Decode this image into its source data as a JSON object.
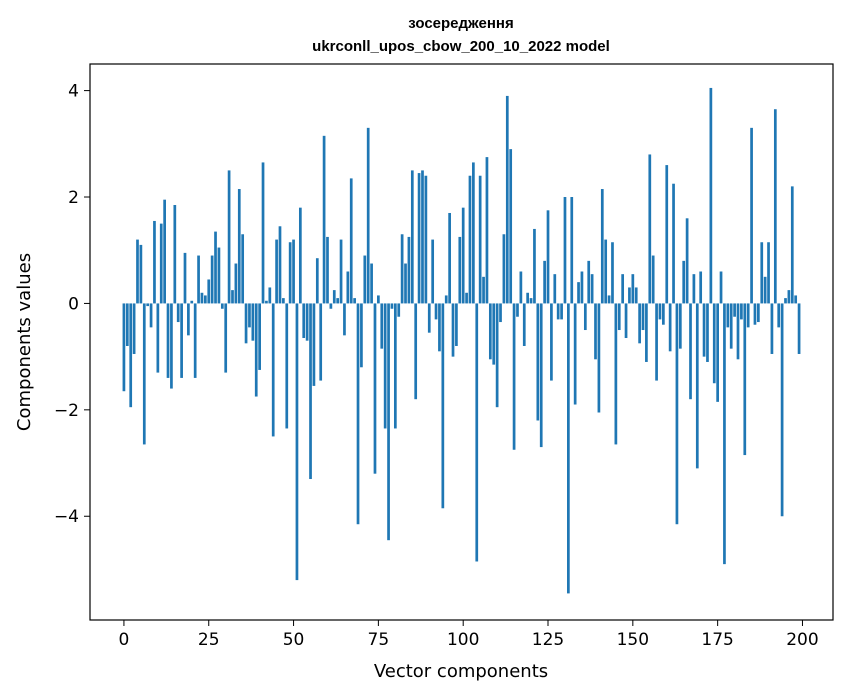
{
  "chart_data": {
    "type": "bar",
    "title": "зосередження",
    "subtitle": "ukrconll_upos_cbow_200_10_2022 model",
    "xlabel": "Vector components",
    "ylabel": "Components values",
    "xlim": [
      -10,
      209
    ],
    "ylim": [
      -5.95,
      4.5
    ],
    "xticks": [
      0,
      25,
      50,
      75,
      100,
      125,
      150,
      175,
      200
    ],
    "yticks": [
      -4,
      -2,
      0,
      2,
      4
    ],
    "xtick_labels": [
      "0",
      "25",
      "50",
      "75",
      "100",
      "125",
      "150",
      "175",
      "200"
    ],
    "ytick_labels": [
      "−4",
      "−2",
      "0",
      "2",
      "4"
    ],
    "bar_color": "#1f77b4",
    "grid": false,
    "x": [
      0,
      1,
      2,
      3,
      4,
      5,
      6,
      7,
      8,
      9,
      10,
      11,
      12,
      13,
      14,
      15,
      16,
      17,
      18,
      19,
      20,
      21,
      22,
      23,
      24,
      25,
      26,
      27,
      28,
      29,
      30,
      31,
      32,
      33,
      34,
      35,
      36,
      37,
      38,
      39,
      40,
      41,
      42,
      43,
      44,
      45,
      46,
      47,
      48,
      49,
      50,
      51,
      52,
      53,
      54,
      55,
      56,
      57,
      58,
      59,
      60,
      61,
      62,
      63,
      64,
      65,
      66,
      67,
      68,
      69,
      70,
      71,
      72,
      73,
      74,
      75,
      76,
      77,
      78,
      79,
      80,
      81,
      82,
      83,
      84,
      85,
      86,
      87,
      88,
      89,
      90,
      91,
      92,
      93,
      94,
      95,
      96,
      97,
      98,
      99,
      100,
      101,
      102,
      103,
      104,
      105,
      106,
      107,
      108,
      109,
      110,
      111,
      112,
      113,
      114,
      115,
      116,
      117,
      118,
      119,
      120,
      121,
      122,
      123,
      124,
      125,
      126,
      127,
      128,
      129,
      130,
      131,
      132,
      133,
      134,
      135,
      136,
      137,
      138,
      139,
      140,
      141,
      142,
      143,
      144,
      145,
      146,
      147,
      148,
      149,
      150,
      151,
      152,
      153,
      154,
      155,
      156,
      157,
      158,
      159,
      160,
      161,
      162,
      163,
      164,
      165,
      166,
      167,
      168,
      169,
      170,
      171,
      172,
      173,
      174,
      175,
      176,
      177,
      178,
      179,
      180,
      181,
      182,
      183,
      184,
      185,
      186,
      187,
      188,
      189,
      190,
      191,
      192,
      193,
      194,
      195,
      196,
      197,
      198,
      199
    ],
    "values": [
      -1.65,
      -0.8,
      -1.95,
      -0.95,
      1.2,
      1.1,
      -2.65,
      -0.05,
      -0.45,
      1.55,
      -1.3,
      1.5,
      1.95,
      -1.4,
      -1.6,
      1.85,
      -0.35,
      -1.4,
      0.95,
      -0.6,
      0.05,
      -1.4,
      0.9,
      0.2,
      0.15,
      0.45,
      0.9,
      1.35,
      1.05,
      -0.1,
      -1.3,
      2.5,
      0.25,
      0.75,
      2.15,
      1.3,
      -0.75,
      -0.45,
      -0.7,
      -1.75,
      -1.25,
      2.65,
      0.05,
      0.3,
      -2.5,
      1.2,
      1.45,
      0.1,
      -2.35,
      1.15,
      1.2,
      -5.2,
      1.8,
      -0.65,
      -0.7,
      -3.3,
      -1.55,
      0.85,
      -1.45,
      3.15,
      1.25,
      -0.1,
      0.25,
      0.1,
      1.2,
      -0.6,
      0.6,
      2.35,
      0.1,
      -4.15,
      -1.2,
      0.9,
      3.3,
      0.75,
      -3.2,
      0.15,
      -0.85,
      -2.35,
      -4.45,
      -0.1,
      -2.35,
      -0.25,
      1.3,
      0.75,
      1.25,
      2.5,
      -1.8,
      2.45,
      2.5,
      2.4,
      -0.55,
      1.2,
      -0.3,
      -0.9,
      -3.85,
      0.15,
      1.7,
      -1.0,
      -0.8,
      1.25,
      1.8,
      0.2,
      2.4,
      2.65,
      -4.85,
      2.4,
      0.5,
      2.75,
      -1.05,
      -1.15,
      -1.95,
      -0.35,
      1.3,
      3.9,
      2.9,
      -2.75,
      -0.25,
      0.6,
      -0.8,
      0.2,
      0.1,
      1.4,
      -2.2,
      -2.7,
      0.8,
      1.75,
      -1.45,
      0.55,
      -0.3,
      -0.3,
      2.0,
      -5.45,
      2.0,
      -1.9,
      0.4,
      0.6,
      -0.5,
      0.8,
      0.55,
      -1.05,
      -2.05,
      2.15,
      1.2,
      0.15,
      1.15,
      -2.65,
      -0.5,
      0.55,
      -0.65,
      0.3,
      0.55,
      0.3,
      -0.75,
      -0.5,
      -1.1,
      2.8,
      0.9,
      -1.45,
      -0.3,
      -0.4,
      2.6,
      -0.9,
      2.25,
      -4.15,
      -0.85,
      0.8,
      1.6,
      -1.8,
      0.55,
      -3.1,
      0.6,
      -1.0,
      -1.1,
      4.05,
      -1.5,
      -1.85,
      0.6,
      -4.9,
      -0.45,
      -0.85,
      -0.25,
      -1.05,
      -0.3,
      -2.85,
      -0.45,
      3.3,
      -0.4,
      -0.35,
      1.15,
      0.5,
      1.15,
      -0.95,
      3.65,
      -0.45,
      -4.0,
      0.1,
      0.25,
      2.2,
      0.15,
      -0.95
    ]
  }
}
